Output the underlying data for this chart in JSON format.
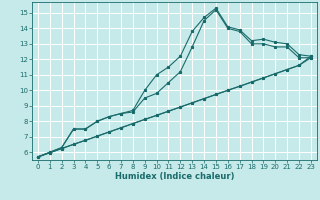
{
  "title": "",
  "xlabel": "Humidex (Indice chaleur)",
  "background_color": "#c6e9e9",
  "grid_color": "#ffffff",
  "line_color": "#1a6b6b",
  "xlim": [
    -0.5,
    23.5
  ],
  "ylim": [
    5.5,
    15.7
  ],
  "xticks": [
    0,
    1,
    2,
    3,
    4,
    5,
    6,
    7,
    8,
    9,
    10,
    11,
    12,
    13,
    14,
    15,
    16,
    17,
    18,
    19,
    20,
    21,
    22,
    23
  ],
  "yticks": [
    6,
    7,
    8,
    9,
    10,
    11,
    12,
    13,
    14,
    15
  ],
  "series1_x": [
    0,
    1,
    2,
    3,
    4,
    5,
    6,
    7,
    8,
    9,
    10,
    11,
    12,
    13,
    14,
    15,
    16,
    17,
    18,
    19,
    20,
    21,
    22,
    23
  ],
  "series1_y": [
    5.7,
    6.0,
    6.3,
    7.5,
    7.5,
    8.0,
    8.3,
    8.5,
    8.7,
    10.0,
    11.0,
    11.5,
    12.2,
    13.8,
    14.7,
    15.3,
    14.1,
    13.9,
    13.2,
    13.3,
    13.1,
    13.0,
    12.3,
    12.2
  ],
  "series2_x": [
    0,
    1,
    2,
    3,
    4,
    5,
    6,
    7,
    8,
    9,
    10,
    11,
    12,
    13,
    14,
    15,
    16,
    17,
    18,
    19,
    20,
    21,
    22,
    23
  ],
  "series2_y": [
    5.7,
    6.0,
    6.3,
    7.5,
    7.5,
    8.0,
    8.3,
    8.5,
    8.6,
    9.5,
    9.8,
    10.5,
    11.2,
    12.8,
    14.5,
    15.2,
    14.0,
    13.8,
    13.0,
    13.0,
    12.8,
    12.8,
    12.1,
    12.1
  ],
  "series3_x": [
    0,
    1,
    2,
    3,
    4,
    5,
    6,
    7,
    8,
    9,
    10,
    11,
    12,
    13,
    14,
    15,
    16,
    17,
    18,
    19,
    20,
    21,
    22,
    23
  ],
  "series3_y": [
    5.7,
    5.97,
    6.24,
    6.51,
    6.77,
    7.04,
    7.31,
    7.58,
    7.85,
    8.12,
    8.38,
    8.65,
    8.92,
    9.19,
    9.46,
    9.73,
    10.0,
    10.26,
    10.53,
    10.8,
    11.07,
    11.34,
    11.61,
    12.2
  ],
  "series4_x": [
    0,
    1,
    2,
    3,
    4,
    5,
    6,
    7,
    8,
    9,
    10,
    11,
    12,
    13,
    14,
    15,
    16,
    17,
    18,
    19,
    20,
    21,
    22,
    23
  ],
  "series4_y": [
    5.7,
    5.97,
    6.24,
    6.51,
    6.77,
    7.04,
    7.31,
    7.58,
    7.85,
    8.12,
    8.38,
    8.65,
    8.92,
    9.19,
    9.46,
    9.73,
    10.0,
    10.26,
    10.53,
    10.8,
    11.07,
    11.34,
    11.61,
    12.1
  ]
}
